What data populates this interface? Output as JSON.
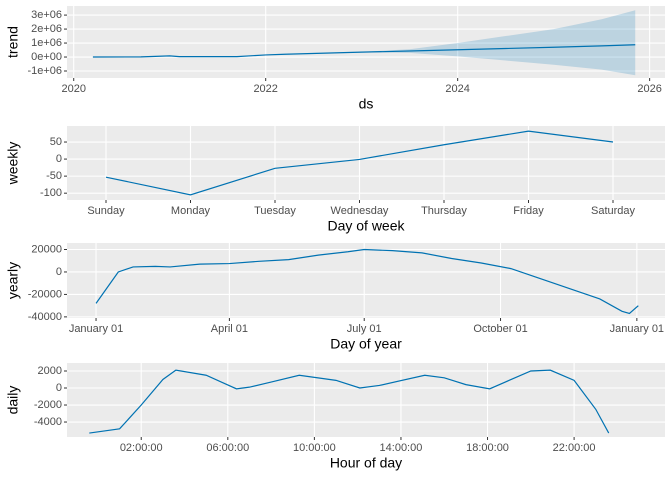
{
  "chart_data": [
    {
      "type": "line",
      "y_label": "trend",
      "x_label": "ds",
      "color": "#0072B2",
      "x": [
        2020.2,
        2020.7,
        2021.0,
        2021.1,
        2021.7,
        2022.0,
        2022.2,
        2023.0,
        2023.5,
        2024.0,
        2024.5,
        2025.0,
        2025.5,
        2025.85
      ],
      "values": [
        0,
        10000,
        80000,
        30000,
        30000,
        150000,
        200000,
        350000,
        430000,
        520000,
        610000,
        700000,
        800000,
        880000
      ],
      "lower": [
        -20000,
        -10000,
        60000,
        10000,
        10000,
        130000,
        180000,
        330000,
        300000,
        50000,
        -250000,
        -550000,
        -900000,
        -1300000
      ],
      "upper": [
        20000,
        30000,
        100000,
        50000,
        50000,
        170000,
        220000,
        370000,
        560000,
        1000000,
        1500000,
        2000000,
        2700000,
        3350000
      ],
      "xlim": [
        2019.93,
        2026.16
      ],
      "xticks": [
        2020,
        2022,
        2024,
        2026
      ],
      "ylim": [
        -1500000,
        3650000
      ],
      "yticks": [
        {
          "value": -1000000,
          "label": "-1e+06"
        },
        {
          "value": 0,
          "label": "0e+00"
        },
        {
          "value": 1000000,
          "label": "1e+06"
        },
        {
          "value": 2000000,
          "label": "2e+06"
        },
        {
          "value": 3000000,
          "label": "3e+06"
        }
      ],
      "grid": true
    },
    {
      "type": "category-line",
      "y_label": "weekly",
      "x_label": "Day of week",
      "color": "#0072B2",
      "categories": [
        "Sunday",
        "Monday",
        "Tuesday",
        "Wednesday",
        "Thursday",
        "Friday",
        "Saturday"
      ],
      "values": [
        -53,
        -105,
        -27,
        -1,
        42,
        82,
        50
      ],
      "ylim": [
        -120,
        97
      ],
      "yticks": [
        -100,
        -50,
        0,
        50
      ],
      "grid": true
    },
    {
      "type": "line",
      "y_label": "yearly",
      "x_label": "Day of year",
      "color": "#0072B2",
      "x": [
        0,
        15,
        25,
        40,
        50,
        70,
        90,
        110,
        130,
        150,
        170,
        181,
        200,
        220,
        240,
        260,
        280,
        300,
        320,
        340,
        355,
        360,
        366
      ],
      "values": [
        -28000,
        0,
        4500,
        5000,
        4500,
        7000,
        7500,
        9500,
        11000,
        15000,
        18000,
        20000,
        19000,
        17000,
        12000,
        8000,
        3000,
        -6000,
        -15000,
        -24000,
        -35000,
        -37000,
        -30000
      ],
      "xlim": [
        -19.6,
        384
      ],
      "xticks": [
        {
          "value": 0,
          "label": "January 01"
        },
        {
          "value": 90,
          "label": "April 01"
        },
        {
          "value": 181,
          "label": "July 01"
        },
        {
          "value": 273,
          "label": "October 01"
        },
        {
          "value": 365,
          "label": "January 01"
        }
      ],
      "ylim": [
        -41000,
        25800
      ],
      "yticks": [
        -40000,
        -20000,
        0,
        20000
      ],
      "grid": true
    },
    {
      "type": "line",
      "y_label": "daily",
      "x_label": "Hour of day",
      "color": "#0072B2",
      "x": [
        -0.4,
        1,
        2,
        3,
        3.6,
        5,
        6.4,
        7,
        8,
        9.3,
        11,
        12.1,
        13,
        15.1,
        16,
        17,
        18.1,
        19,
        20,
        20.9,
        22,
        23,
        23.6
      ],
      "values": [
        -5300,
        -4800,
        -2000,
        1000,
        2100,
        1500,
        -100,
        100,
        700,
        1500,
        900,
        0,
        300,
        1500,
        1200,
        400,
        -100,
        900,
        2000,
        2100,
        900,
        -2500,
        -5300
      ],
      "xlim": [
        -1.43,
        26.2
      ],
      "xticks": [
        {
          "value": 2,
          "label": "02:00:00"
        },
        {
          "value": 6,
          "label": "06:00:00"
        },
        {
          "value": 10,
          "label": "10:00:00"
        },
        {
          "value": 14,
          "label": "14:00:00"
        },
        {
          "value": 18,
          "label": "18:00:00"
        },
        {
          "value": 22,
          "label": "22:00:00"
        }
      ],
      "ylim": [
        -5760,
        2940
      ],
      "yticks": [
        -4000,
        -2000,
        0,
        2000
      ],
      "grid": true
    }
  ]
}
